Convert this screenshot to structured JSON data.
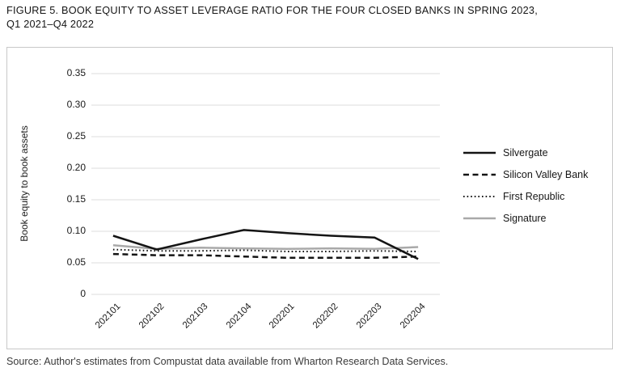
{
  "title": {
    "line1": "FIGURE 5. BOOK EQUITY TO ASSET LEVERAGE RATIO FOR THE FOUR CLOSED BANKS IN SPRING 2023,",
    "line2": "Q1 2021–Q4 2022"
  },
  "source": "Source:  Author's estimates from Compustat data available from Wharton Research Data Services.",
  "colors": {
    "line_black": "#141414",
    "line_gray": "#a9a9a9",
    "gridline": "#dcdcdc",
    "frame_border": "#c8c8c8",
    "text": "#1a1a1a"
  },
  "chart_data": {
    "type": "line",
    "title": "Book equity to asset leverage ratio for the four closed banks, Q1 2021 - Q4 2022",
    "xlabel": "",
    "ylabel": "Book equity to book assets",
    "ylim": [
      0,
      0.35
    ],
    "yticks": [
      0,
      0.05,
      0.1,
      0.15,
      0.2,
      0.25,
      0.3,
      0.35
    ],
    "ytick_labels": [
      "0",
      "0.05",
      "0.10",
      "0.15",
      "0.20",
      "0.25",
      "0.30",
      "0.35"
    ],
    "categories": [
      "202101",
      "202102",
      "202103",
      "202104",
      "202201",
      "202202",
      "202203",
      "202204"
    ],
    "grid": "horizontal",
    "legend_position": "right",
    "series": [
      {
        "name": "Silvergate",
        "line_style": "solid",
        "color": "#141414",
        "values": [
          0.093,
          0.071,
          0.087,
          0.102,
          0.097,
          0.093,
          0.09,
          0.056
        ]
      },
      {
        "name": "Silicon Valley Bank",
        "line_style": "dashed",
        "color": "#141414",
        "values": [
          0.064,
          0.062,
          0.062,
          0.06,
          0.058,
          0.058,
          0.058,
          0.06
        ]
      },
      {
        "name": "First Republic",
        "line_style": "dotted",
        "color": "#141414",
        "values": [
          0.071,
          0.069,
          0.069,
          0.07,
          0.068,
          0.068,
          0.069,
          0.068
        ]
      },
      {
        "name": "Signature",
        "line_style": "solid",
        "color": "#a9a9a9",
        "values": [
          0.078,
          0.072,
          0.074,
          0.073,
          0.072,
          0.073,
          0.072,
          0.075
        ]
      }
    ]
  }
}
